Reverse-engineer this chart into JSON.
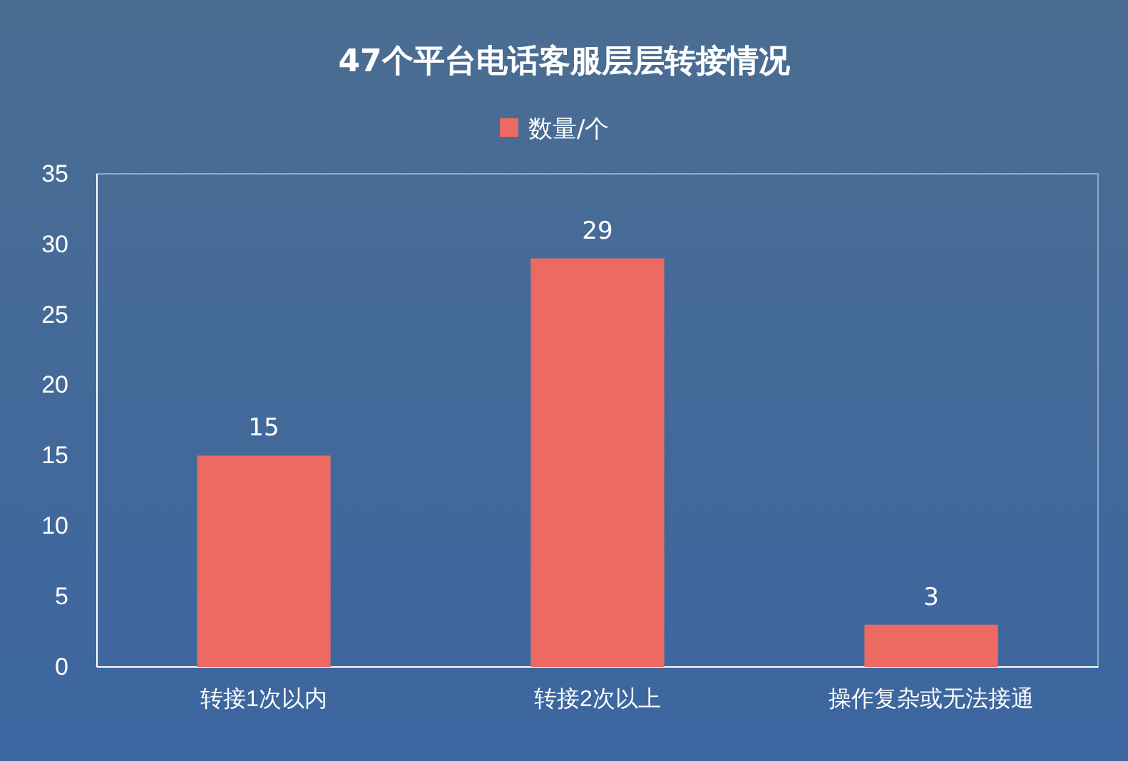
{
  "chart_data": {
    "type": "bar",
    "title": "47个平台电话客服层层转接情况",
    "categories": [
      "转接1次以内",
      "转接2次以上",
      "操作复杂或无法接通"
    ],
    "series": [
      {
        "name": "数量/个",
        "color": "#ec6a61",
        "values": [
          15,
          29,
          3
        ]
      }
    ],
    "ylim": [
      0,
      35
    ],
    "yticks": [
      0,
      5,
      10,
      15,
      20,
      25,
      30,
      35
    ],
    "grid": false,
    "legend": "top",
    "data_labels": true
  }
}
